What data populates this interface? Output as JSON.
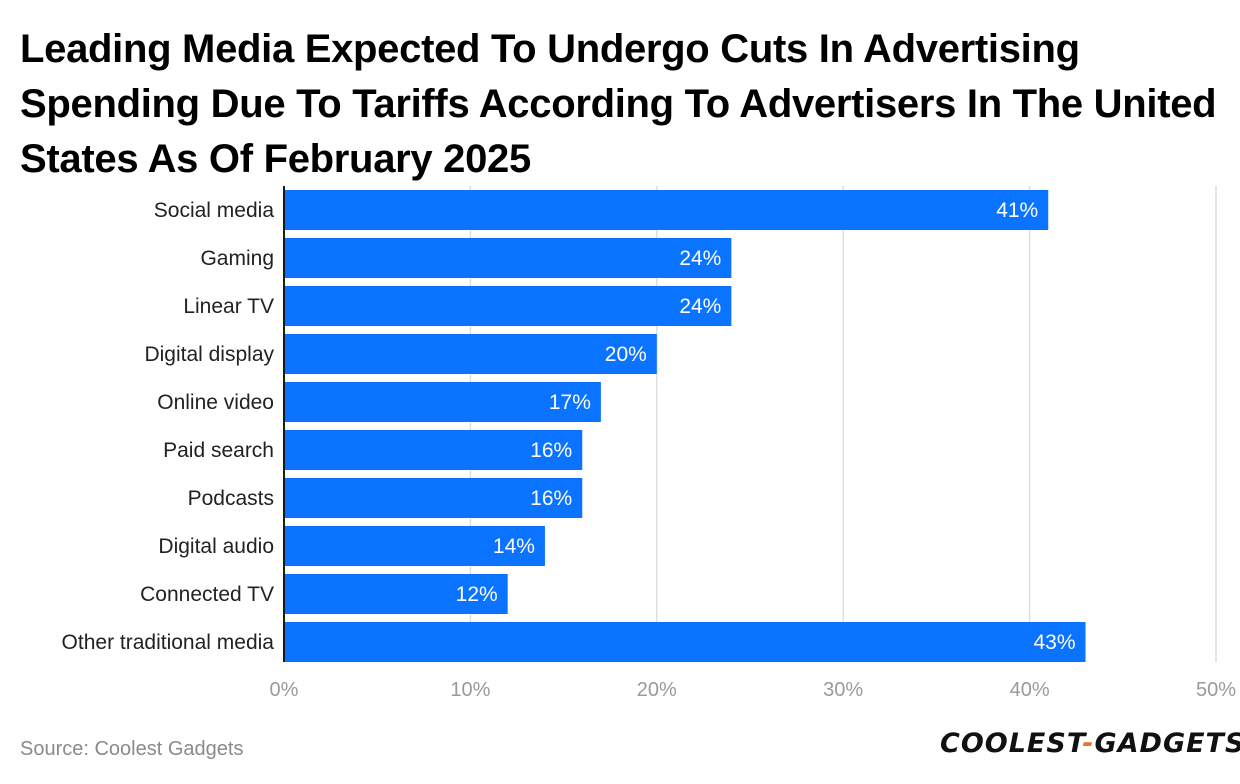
{
  "chart_data": {
    "type": "bar",
    "orientation": "horizontal",
    "title": "Leading Media Expected To Undergo Cuts In Advertising Spending Due To Tariffs According To Advertisers In The United States As Of February 2025",
    "categories": [
      "Social media",
      "Gaming",
      "Linear TV",
      "Digital display",
      "Online video",
      "Paid search",
      "Podcasts",
      "Digital audio",
      "Connected TV",
      "Other traditional media"
    ],
    "values": [
      41,
      24,
      24,
      20,
      17,
      16,
      16,
      14,
      12,
      43
    ],
    "value_labels": [
      "41%",
      "24%",
      "24%",
      "20%",
      "17%",
      "16%",
      "16%",
      "14%",
      "12%",
      "43%"
    ],
    "xlim": [
      0,
      50
    ],
    "x_ticks": [
      0,
      10,
      20,
      30,
      40,
      50
    ],
    "x_tick_labels": [
      "0%",
      "10%",
      "20%",
      "30%",
      "40%",
      "50%"
    ],
    "xlabel": "",
    "ylabel": "",
    "grid": true,
    "bar_color": "#0a73ff"
  },
  "source": "Source: Coolest Gadgets",
  "brand": {
    "left": "COOLEST",
    "dash": "-",
    "right": "GADGETS"
  }
}
